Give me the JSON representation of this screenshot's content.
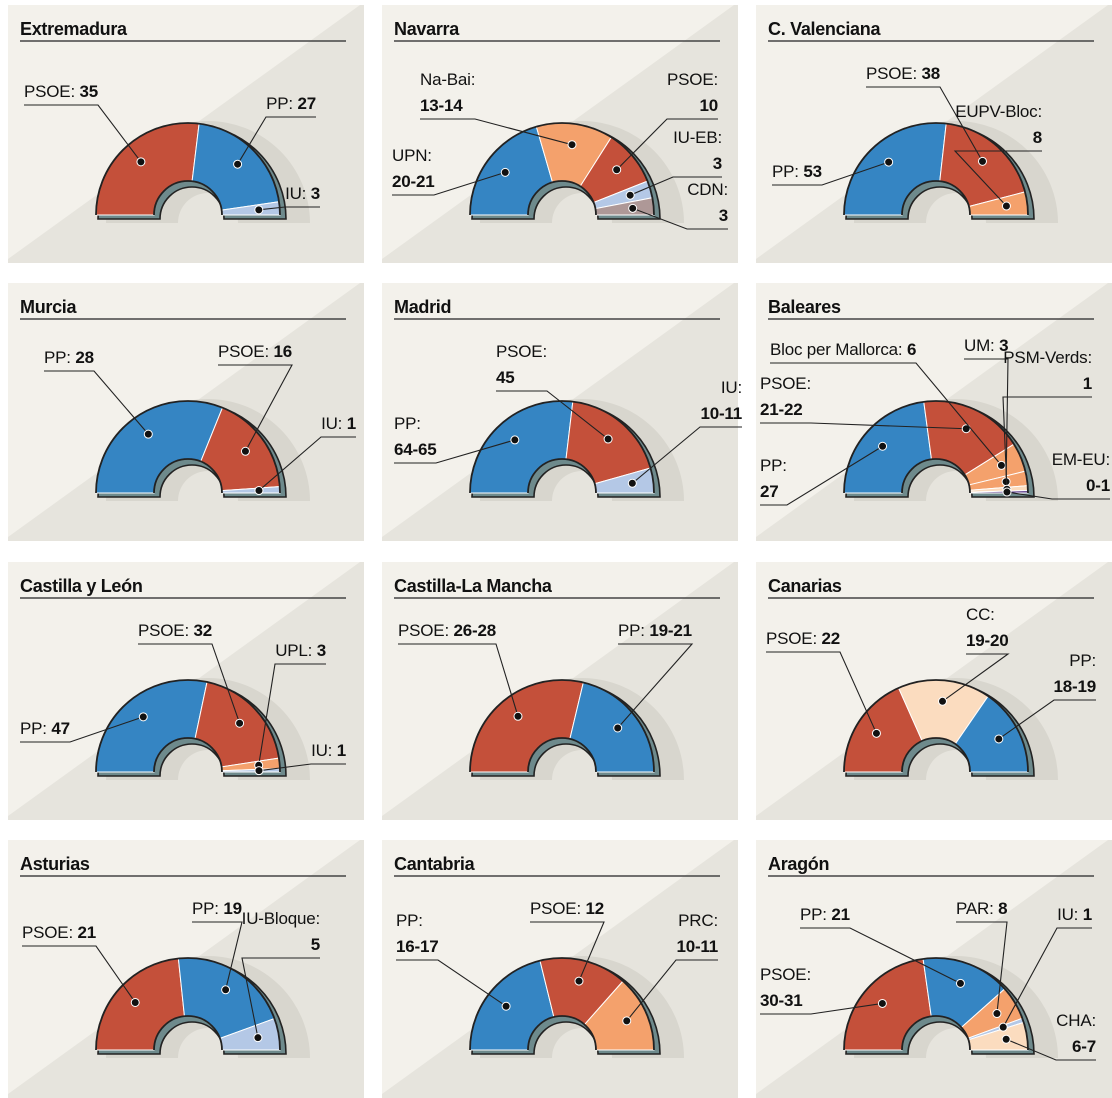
{
  "colors": {
    "PP": "#3585c3",
    "PSOE": "#c4503a",
    "IU": "#b4c8e6",
    "orange": "#f4a16c",
    "cream": "#fbdcbf",
    "CDN": "#ae9897",
    "purple": "#5a3a8a",
    "background": "#f3f1eb",
    "diagonal": "#e6e4dd"
  },
  "chart_data": [
    {
      "type": "parliament",
      "title": "Extremadura",
      "series": [
        {
          "name": "PSOE",
          "value_label": "35",
          "value": 35,
          "color": "PSOE"
        },
        {
          "name": "PP",
          "value_label": "27",
          "value": 27,
          "color": "PP"
        },
        {
          "name": "IU",
          "value_label": "3",
          "value": 3,
          "color": "IU"
        }
      ]
    },
    {
      "type": "parliament",
      "title": "Navarra",
      "series": [
        {
          "name": "UPN",
          "value_label": "20-21",
          "value": 20.5,
          "color": "PP"
        },
        {
          "name": "Na-Bai",
          "value_label": "13-14",
          "value": 13.5,
          "color": "orange"
        },
        {
          "name": "PSOE",
          "value_label": "10",
          "value": 10,
          "color": "PSOE"
        },
        {
          "name": "IU-EB",
          "value_label": "3",
          "value": 3,
          "color": "IU"
        },
        {
          "name": "CDN",
          "value_label": "3",
          "value": 3,
          "color": "CDN"
        }
      ]
    },
    {
      "type": "parliament",
      "title": "C. Valenciana",
      "series": [
        {
          "name": "PP",
          "value_label": "53",
          "value": 53,
          "color": "PP"
        },
        {
          "name": "PSOE",
          "value_label": "38",
          "value": 38,
          "color": "PSOE"
        },
        {
          "name": "EUPV-Bloc",
          "value_label": "8",
          "value": 8,
          "color": "orange"
        }
      ]
    },
    {
      "type": "parliament",
      "title": "Murcia",
      "series": [
        {
          "name": "PP",
          "value_label": "28",
          "value": 28,
          "color": "PP"
        },
        {
          "name": "PSOE",
          "value_label": "16",
          "value": 16,
          "color": "PSOE"
        },
        {
          "name": "IU",
          "value_label": "1",
          "value": 1,
          "color": "IU"
        }
      ]
    },
    {
      "type": "parliament",
      "title": "Madrid",
      "series": [
        {
          "name": "PP",
          "value_label": "64-65",
          "value": 64.5,
          "color": "PP"
        },
        {
          "name": "PSOE",
          "value_label": "45",
          "value": 45,
          "color": "PSOE"
        },
        {
          "name": "IU",
          "value_label": "10-11",
          "value": 10.5,
          "color": "IU"
        }
      ]
    },
    {
      "type": "parliament",
      "title": "Baleares",
      "series": [
        {
          "name": "PP",
          "value_label": "27",
          "value": 27,
          "color": "PP"
        },
        {
          "name": "PSOE",
          "value_label": "21-22",
          "value": 21.5,
          "color": "PSOE"
        },
        {
          "name": "Bloc per Mallorca",
          "value_label": "6",
          "value": 6,
          "color": "orange"
        },
        {
          "name": "UM",
          "value_label": "3",
          "value": 3,
          "color": "orange"
        },
        {
          "name": "PSM-Verds",
          "value_label": "1",
          "value": 1,
          "color": "cream"
        },
        {
          "name": "EM-EU",
          "value_label": "0-1",
          "value": 0.5,
          "color": "purple"
        }
      ]
    },
    {
      "type": "parliament",
      "title": "Castilla y León",
      "series": [
        {
          "name": "PP",
          "value_label": "47",
          "value": 47,
          "color": "PP"
        },
        {
          "name": "PSOE",
          "value_label": "32",
          "value": 32,
          "color": "PSOE"
        },
        {
          "name": "UPL",
          "value_label": "3",
          "value": 3,
          "color": "orange"
        },
        {
          "name": "IU",
          "value_label": "1",
          "value": 1,
          "color": "IU"
        }
      ]
    },
    {
      "type": "parliament",
      "title": "Castilla-La Mancha",
      "series": [
        {
          "name": "PSOE",
          "value_label": "26-28",
          "value": 27,
          "color": "PSOE"
        },
        {
          "name": "PP",
          "value_label": "19-21",
          "value": 20,
          "color": "PP"
        }
      ]
    },
    {
      "type": "parliament",
      "title": "Canarias",
      "series": [
        {
          "name": "PSOE",
          "value_label": "22",
          "value": 22,
          "color": "PSOE"
        },
        {
          "name": "CC",
          "value_label": "19-20",
          "value": 19.5,
          "color": "cream"
        },
        {
          "name": "PP",
          "value_label": "18-19",
          "value": 18.5,
          "color": "PP"
        }
      ]
    },
    {
      "type": "parliament",
      "title": "Asturias",
      "series": [
        {
          "name": "PSOE",
          "value_label": "21",
          "value": 21,
          "color": "PSOE"
        },
        {
          "name": "PP",
          "value_label": "19",
          "value": 19,
          "color": "PP"
        },
        {
          "name": "IU-Bloque",
          "value_label": "5",
          "value": 5,
          "color": "IU"
        }
      ]
    },
    {
      "type": "parliament",
      "title": "Cantabria",
      "series": [
        {
          "name": "PP",
          "value_label": "16-17",
          "value": 16.5,
          "color": "PP"
        },
        {
          "name": "PSOE",
          "value_label": "12",
          "value": 12,
          "color": "PSOE"
        },
        {
          "name": "PRC",
          "value_label": "10-11",
          "value": 10.5,
          "color": "orange"
        }
      ]
    },
    {
      "type": "parliament",
      "title": "Aragón",
      "series": [
        {
          "name": "PSOE",
          "value_label": "30-31",
          "value": 30.5,
          "color": "PSOE"
        },
        {
          "name": "PP",
          "value_label": "21",
          "value": 21,
          "color": "PP"
        },
        {
          "name": "PAR",
          "value_label": "8",
          "value": 8,
          "color": "orange"
        },
        {
          "name": "IU",
          "value_label": "1",
          "value": 1,
          "color": "IU"
        },
        {
          "name": "CHA",
          "value_label": "6-7",
          "value": 6.5,
          "color": "cream"
        }
      ]
    }
  ]
}
